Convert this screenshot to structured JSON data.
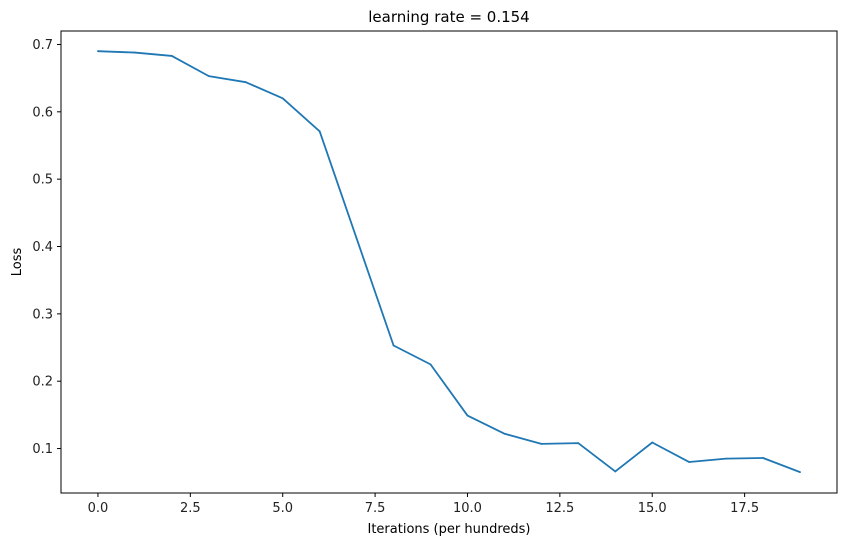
{
  "chart_data": {
    "type": "line",
    "title": "learning rate = 0.154",
    "xlabel": "Iterations (per hundreds)",
    "ylabel": "Loss",
    "xlim": [
      -1,
      20
    ],
    "ylim": [
      0.034,
      0.72
    ],
    "grid": false,
    "legend": "none",
    "x_ticks": [
      0.0,
      2.5,
      5.0,
      7.5,
      10.0,
      12.5,
      15.0,
      17.5
    ],
    "x_tick_labels": [
      "0.0",
      "2.5",
      "5.0",
      "7.5",
      "10.0",
      "12.5",
      "15.0",
      "17.5"
    ],
    "y_ticks": [
      0.1,
      0.2,
      0.3,
      0.4,
      0.5,
      0.6,
      0.7
    ],
    "y_tick_labels": [
      "0.1",
      "0.2",
      "0.3",
      "0.4",
      "0.5",
      "0.6",
      "0.7"
    ],
    "series": [
      {
        "color": "#1f77b4",
        "x": [
          0,
          1,
          2,
          3,
          4,
          5,
          6,
          7,
          8,
          9,
          10,
          11,
          12,
          13,
          14,
          15,
          16,
          17,
          18,
          19
        ],
        "y": [
          0.69,
          0.688,
          0.683,
          0.653,
          0.644,
          0.62,
          0.571,
          0.412,
          0.253,
          0.225,
          0.149,
          0.122,
          0.107,
          0.108,
          0.066,
          0.109,
          0.08,
          0.085,
          0.086,
          0.065
        ]
      }
    ]
  }
}
